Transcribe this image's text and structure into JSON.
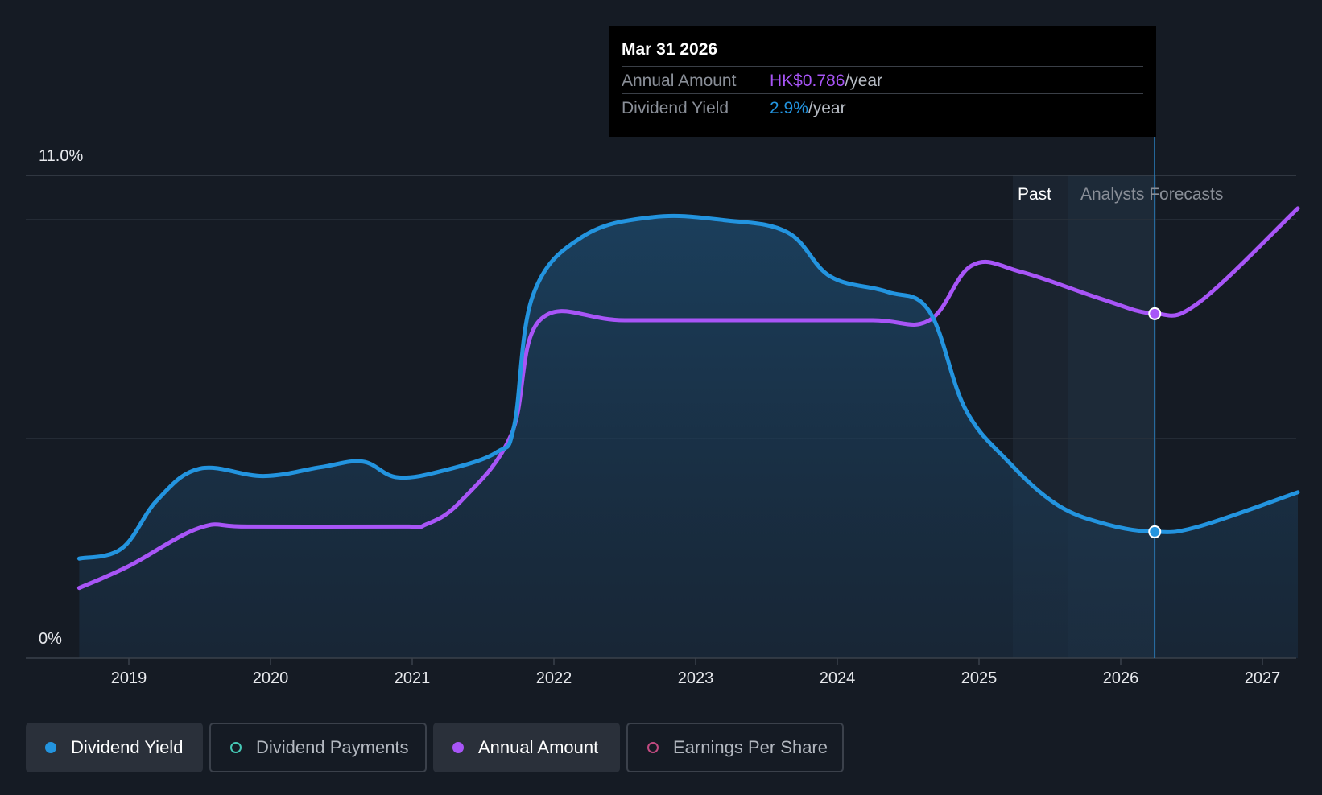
{
  "chart_data": {
    "type": "line",
    "y_axis": {
      "min": 0,
      "max": 11.0,
      "top_label": "11.0%",
      "bottom_label": "0%"
    },
    "x_axis": {
      "ticks": [
        "2019",
        "2020",
        "2021",
        "2022",
        "2023",
        "2024",
        "2025",
        "2026",
        "2027"
      ]
    },
    "x_range": [
      2018.65,
      2027.25
    ],
    "regions": {
      "past_label": "Past",
      "forecast_label": "Analysts Forecasts"
    },
    "series": [
      {
        "name": "Dividend Yield",
        "color": "#2394df",
        "unit": "%",
        "points": [
          [
            2018.65,
            2.27
          ],
          [
            2018.95,
            2.5
          ],
          [
            2019.2,
            3.6
          ],
          [
            2019.5,
            4.32
          ],
          [
            2019.95,
            4.15
          ],
          [
            2020.35,
            4.35
          ],
          [
            2020.65,
            4.48
          ],
          [
            2020.9,
            4.12
          ],
          [
            2021.25,
            4.3
          ],
          [
            2021.6,
            4.7
          ],
          [
            2021.72,
            5.3
          ],
          [
            2021.85,
            8.25
          ],
          [
            2022.2,
            9.6
          ],
          [
            2022.7,
            10.05
          ],
          [
            2023.2,
            9.98
          ],
          [
            2023.65,
            9.7
          ],
          [
            2023.95,
            8.7
          ],
          [
            2024.35,
            8.35
          ],
          [
            2024.65,
            7.9
          ],
          [
            2024.9,
            5.7
          ],
          [
            2025.2,
            4.5
          ],
          [
            2025.55,
            3.5
          ],
          [
            2025.9,
            3.05
          ],
          [
            2026.24,
            2.88
          ],
          [
            2026.55,
            3.0
          ],
          [
            2027.25,
            3.78
          ]
        ]
      },
      {
        "name": "Annual Amount",
        "color": "#a855f7",
        "unit": "HK$",
        "points": [
          [
            2018.65,
            1.6
          ],
          [
            2019.0,
            2.1
          ],
          [
            2019.5,
            2.97
          ],
          [
            2019.85,
            3.0
          ],
          [
            2020.9,
            3.0
          ],
          [
            2021.1,
            3.05
          ],
          [
            2021.35,
            3.6
          ],
          [
            2021.7,
            5.1
          ],
          [
            2021.9,
            7.7
          ],
          [
            2022.5,
            7.7
          ],
          [
            2023.5,
            7.7
          ],
          [
            2024.25,
            7.7
          ],
          [
            2024.65,
            7.7
          ],
          [
            2024.95,
            8.95
          ],
          [
            2025.3,
            8.8
          ],
          [
            2025.85,
            8.2
          ],
          [
            2026.24,
            7.85
          ],
          [
            2026.55,
            8.1
          ],
          [
            2027.25,
            10.25
          ]
        ]
      }
    ],
    "highlight": {
      "x": 2026.24,
      "dividend_yield_value": 2.88,
      "annual_amount_value": 7.85
    },
    "legend": [
      "Dividend Yield",
      "Dividend Payments",
      "Annual Amount",
      "Earnings Per Share"
    ]
  },
  "tooltip": {
    "date": "Mar 31 2026",
    "annual_amount_label": "Annual Amount",
    "annual_amount_value": "HK$0.786",
    "annual_amount_unit": "/year",
    "dividend_yield_label": "Dividend Yield",
    "dividend_yield_value": "2.9%",
    "dividend_yield_unit": "/year"
  },
  "legend_items": [
    {
      "label": "Dividend Yield",
      "color": "#2394df",
      "active": true
    },
    {
      "label": "Dividend Payments",
      "color": "#45c8b5",
      "active": false
    },
    {
      "label": "Annual Amount",
      "color": "#a855f7",
      "active": true
    },
    {
      "label": "Earnings Per Share",
      "color": "#c04a80",
      "active": false
    }
  ]
}
